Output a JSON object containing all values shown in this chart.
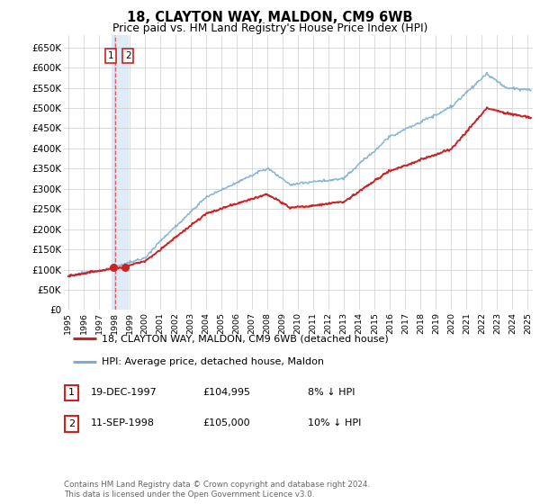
{
  "title": "18, CLAYTON WAY, MALDON, CM9 6WB",
  "subtitle": "Price paid vs. HM Land Registry's House Price Index (HPI)",
  "xlim": [
    1994.7,
    2025.3
  ],
  "ylim": [
    0,
    680000
  ],
  "yticks": [
    0,
    50000,
    100000,
    150000,
    200000,
    250000,
    300000,
    350000,
    400000,
    450000,
    500000,
    550000,
    600000,
    650000
  ],
  "ytick_labels": [
    "£0",
    "£50K",
    "£100K",
    "£150K",
    "£200K",
    "£250K",
    "£300K",
    "£350K",
    "£400K",
    "£450K",
    "£500K",
    "£550K",
    "£600K",
    "£650K"
  ],
  "hpi_color": "#7aadd4",
  "price_color": "#cc2222",
  "dashed_line_color": "#dd4444",
  "shade_color": "#d8e8f5",
  "purchase1_x": 1997.97,
  "purchase1_y": 104995,
  "purchase2_x": 1998.71,
  "purchase2_y": 105000,
  "legend_line1": "18, CLAYTON WAY, MALDON, CM9 6WB (detached house)",
  "legend_line2": "HPI: Average price, detached house, Maldon",
  "table_rows": [
    {
      "num": "1",
      "date": "19-DEC-1997",
      "price": "£104,995",
      "pct": "8% ↓ HPI"
    },
    {
      "num": "2",
      "date": "11-SEP-1998",
      "price": "£105,000",
      "pct": "10% ↓ HPI"
    }
  ],
  "footer": "Contains HM Land Registry data © Crown copyright and database right 2024.\nThis data is licensed under the Open Government Licence v3.0.",
  "background_color": "#ffffff",
  "grid_color": "#cccccc"
}
